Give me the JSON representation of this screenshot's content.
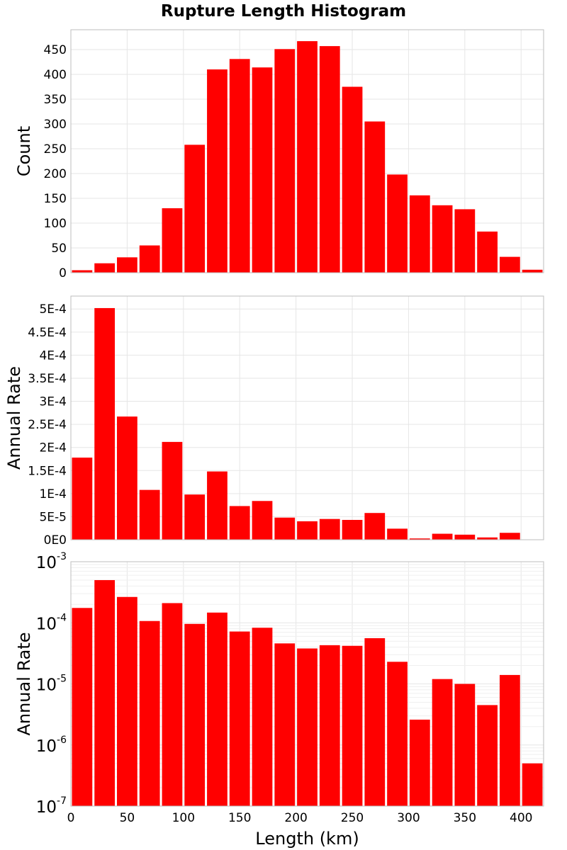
{
  "title": "Rupture Length Histogram",
  "colors": {
    "bar": "#ff0000",
    "grid": "#e6e6e6",
    "frame": "#bdbdbd"
  },
  "chart_data": [
    {
      "type": "bar",
      "name": "count-panel",
      "bin_width": 20,
      "x": [
        10,
        30,
        50,
        70,
        90,
        110,
        130,
        150,
        170,
        190,
        210,
        230,
        250,
        270,
        290,
        310,
        330,
        350,
        370,
        390,
        410
      ],
      "values": [
        5,
        19,
        31,
        55,
        130,
        258,
        410,
        431,
        414,
        451,
        467,
        457,
        375,
        305,
        198,
        156,
        136,
        128,
        83,
        32,
        6
      ],
      "xlim": [
        0,
        420
      ],
      "ylim": [
        0,
        490
      ],
      "yscale": "linear",
      "yticks": [
        0,
        50,
        100,
        150,
        200,
        250,
        300,
        350,
        400,
        450
      ],
      "ytick_labels": [
        "0",
        "50",
        "100",
        "150",
        "200",
        "250",
        "300",
        "350",
        "400",
        "450"
      ],
      "ylabel": "Count",
      "grid": true
    },
    {
      "type": "bar",
      "name": "rate-linear-panel",
      "bin_width": 20,
      "x": [
        10,
        30,
        50,
        70,
        90,
        110,
        130,
        150,
        170,
        190,
        210,
        230,
        250,
        270,
        290,
        310,
        330,
        350,
        370,
        390,
        410
      ],
      "values": [
        0.000178,
        0.000502,
        0.000267,
        0.000108,
        0.000212,
        9.8e-05,
        0.000148,
        7.3e-05,
        8.4e-05,
        4.8e-05,
        4e-05,
        4.5e-05,
        4.3e-05,
        5.8e-05,
        2.4e-05,
        2.8e-06,
        1.3e-05,
        1.1e-05,
        5e-06,
        1.5e-05,
        6e-07
      ],
      "xlim": [
        0,
        420
      ],
      "ylim": [
        0,
        0.000528
      ],
      "yscale": "linear",
      "yticks": [
        0,
        5e-05,
        0.0001,
        0.00015,
        0.0002,
        0.00025,
        0.0003,
        0.00035,
        0.0004,
        0.00045,
        0.0005
      ],
      "ytick_labels": [
        "0E0",
        "5E-5",
        "1E-4",
        "1.5E-4",
        "2E-4",
        "2.5E-4",
        "3E-4",
        "3.5E-4",
        "4E-4",
        "4.5E-4",
        "5E-4"
      ],
      "ylabel": "Annual Rate",
      "grid": true
    },
    {
      "type": "bar",
      "name": "rate-log-panel",
      "bin_width": 20,
      "x": [
        10,
        30,
        50,
        70,
        90,
        110,
        130,
        150,
        170,
        190,
        210,
        230,
        250,
        270,
        290,
        310,
        330,
        350,
        370,
        390,
        410
      ],
      "values": [
        0.000175,
        0.0005,
        0.000265,
        0.000107,
        0.00021,
        9.6e-05,
        0.000147,
        7.2e-05,
        8.3e-05,
        4.6e-05,
        3.8e-05,
        4.3e-05,
        4.2e-05,
        5.6e-05,
        2.3e-05,
        2.6e-06,
        1.2e-05,
        1e-05,
        4.5e-06,
        1.4e-05,
        5e-07
      ],
      "xlim": [
        0,
        420
      ],
      "ylim": [
        1e-07,
        0.001
      ],
      "yscale": "log",
      "yticks": [
        1e-07,
        1e-06,
        1e-05,
        0.0001,
        0.001
      ],
      "ytick_labels": [
        {
          "base": "10",
          "exp": "-7"
        },
        {
          "base": "10",
          "exp": "-6"
        },
        {
          "base": "10",
          "exp": "-5"
        },
        {
          "base": "10",
          "exp": "-4"
        },
        {
          "base": "10",
          "exp": "-3"
        }
      ],
      "xticks": [
        0,
        50,
        100,
        150,
        200,
        250,
        300,
        350,
        400
      ],
      "xtick_labels": [
        "0",
        "50",
        "100",
        "150",
        "200",
        "250",
        "300",
        "350",
        "400"
      ],
      "xlabel": "Length (km)",
      "ylabel": "Annual Rate",
      "grid": true
    }
  ]
}
